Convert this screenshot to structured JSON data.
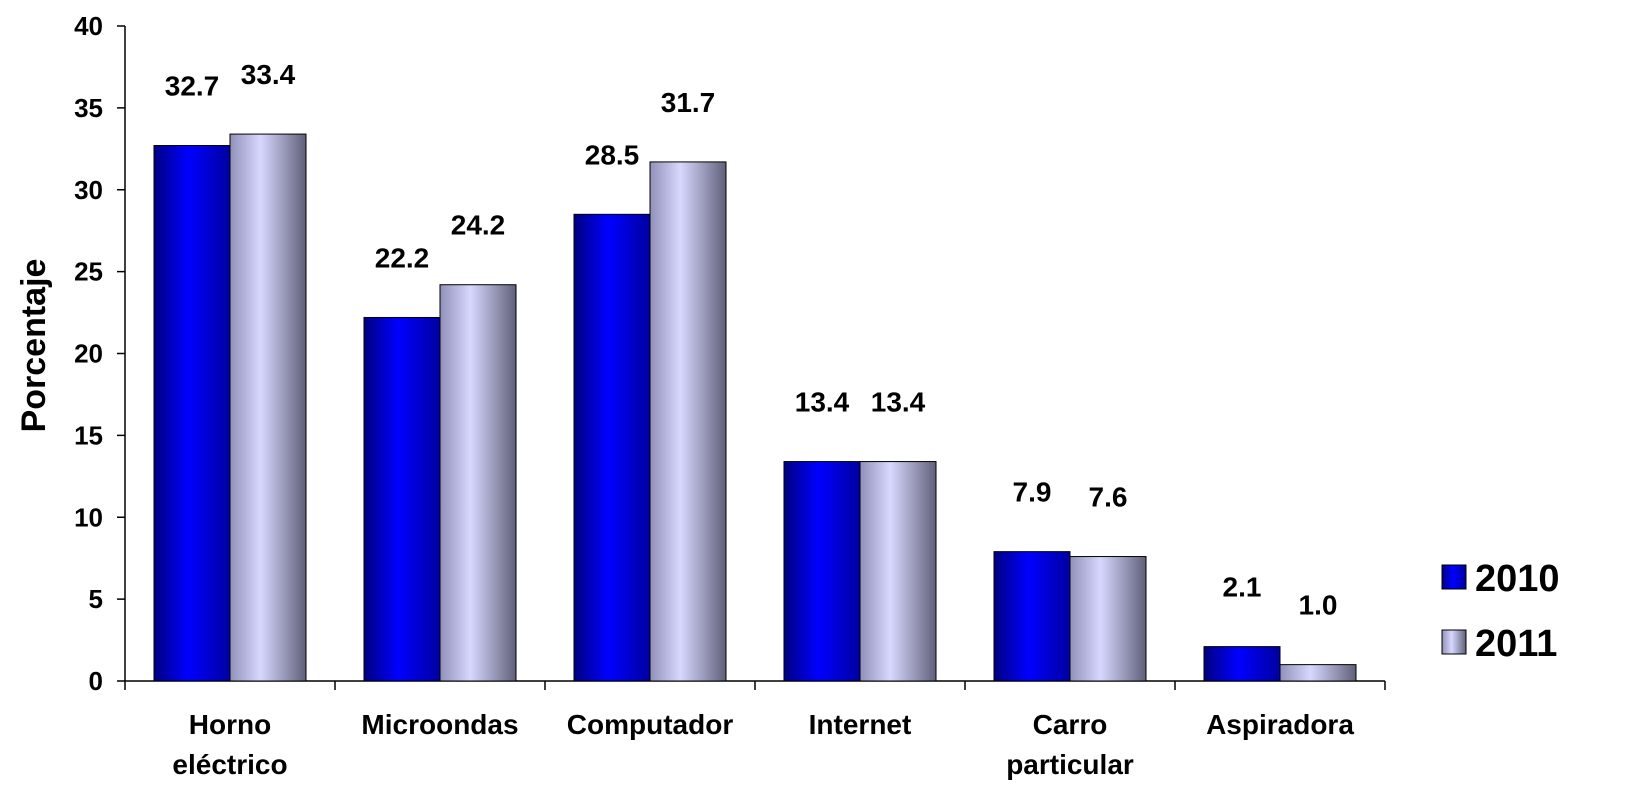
{
  "chart_data": {
    "type": "bar",
    "categories": [
      [
        "Horno",
        "eléctrico"
      ],
      [
        "Microondas"
      ],
      [
        "Computador"
      ],
      [
        "Internet"
      ],
      [
        "Carro",
        "particular"
      ],
      [
        "Aspiradora"
      ]
    ],
    "series": [
      {
        "name": "2010",
        "values": [
          32.7,
          22.2,
          28.5,
          13.4,
          7.9,
          2.1
        ],
        "labels": [
          "32.7",
          "22.2",
          "28.5",
          "13.4",
          "7.9",
          "2.1"
        ],
        "color": "#0000ee"
      },
      {
        "name": "2011",
        "values": [
          33.4,
          24.2,
          31.7,
          13.4,
          7.6,
          1.0
        ],
        "labels": [
          "33.4",
          "24.2",
          "31.7",
          "13.4",
          "7.6",
          "1.0"
        ],
        "color": "#c0c0f0"
      }
    ],
    "ylabel": "Porcentaje",
    "xlabel": "",
    "ylim": [
      0,
      40
    ],
    "yticks": [
      0,
      5,
      10,
      15,
      20,
      25,
      30,
      35,
      40
    ],
    "grid": false,
    "legend_position": "right"
  }
}
